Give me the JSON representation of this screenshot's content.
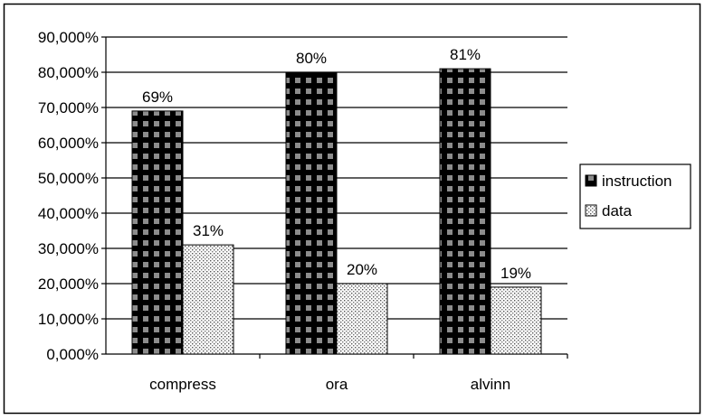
{
  "chart_data": {
    "type": "bar",
    "title": "",
    "xlabel": "",
    "ylabel": "",
    "categories": [
      "compress",
      "ora",
      "alvinn"
    ],
    "series": [
      {
        "name": "instruction",
        "values": [
          69,
          80,
          81
        ],
        "data_labels": [
          "69%",
          "80%",
          "81%"
        ],
        "pattern": "checker-dark",
        "color": "#000000"
      },
      {
        "name": "data",
        "values": [
          31,
          20,
          19
        ],
        "data_labels": [
          "31%",
          "20%",
          "19%"
        ],
        "pattern": "dotted-light",
        "color": "#ffffff"
      }
    ],
    "ylim": [
      0,
      90
    ],
    "yticks": [
      0,
      10,
      20,
      30,
      40,
      50,
      60,
      70,
      80,
      90
    ],
    "ytick_labels": [
      "0,000%",
      "10,000%",
      "20,000%",
      "30,000%",
      "40,000%",
      "50,000%",
      "60,000%",
      "70,000%",
      "80,000%",
      "90,000%"
    ],
    "grid": true,
    "legend": "right"
  }
}
